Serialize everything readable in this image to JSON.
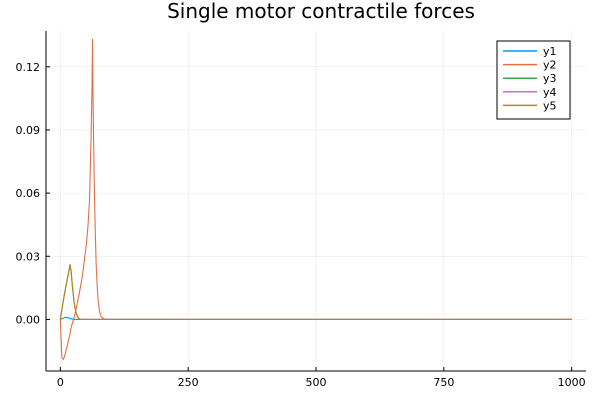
{
  "chart_data": {
    "type": "line",
    "title": "Single motor contractile forces",
    "xlabel": "",
    "ylabel": "",
    "xlim": [
      -28,
      1028
    ],
    "ylim": [
      -0.0245,
      0.137
    ],
    "x_ticks": [
      0,
      250,
      500,
      750,
      1000
    ],
    "x_tick_labels": [
      "0",
      "250",
      "500",
      "750",
      "1000"
    ],
    "y_ticks": [
      0.0,
      0.03,
      0.06,
      0.09,
      0.12
    ],
    "y_tick_labels": [
      "0.00",
      "0.03",
      "0.06",
      "0.09",
      "0.12"
    ],
    "grid": true,
    "legend": {
      "position": "top-right"
    },
    "series": [
      {
        "name": "y1",
        "color": "#009af9",
        "x": [
          0,
          5,
          10,
          15,
          20,
          25,
          30,
          50,
          100,
          1000
        ],
        "y": [
          0,
          0.0005,
          0.001,
          0.0008,
          0.0004,
          0.0001,
          0,
          0,
          0,
          0
        ]
      },
      {
        "name": "y2",
        "color": "#e26f46",
        "x": [
          0,
          3,
          6,
          9,
          12,
          15,
          18,
          21,
          24,
          27,
          30,
          33,
          36,
          39,
          42,
          45,
          48,
          51,
          54,
          57,
          60,
          62,
          63,
          64,
          66,
          68,
          70,
          72,
          74,
          76,
          78,
          80,
          85,
          90,
          100,
          1000
        ],
        "y": [
          0,
          -0.018,
          -0.019,
          -0.017,
          -0.014,
          -0.011,
          -0.008,
          -0.004,
          -0.0015,
          0.001,
          0.004,
          0.0075,
          0.011,
          0.015,
          0.019,
          0.024,
          0.03,
          0.036,
          0.044,
          0.056,
          0.085,
          0.11,
          0.133,
          0.105,
          0.07,
          0.045,
          0.027,
          0.016,
          0.009,
          0.005,
          0.0025,
          0.0012,
          0.0003,
          0,
          0,
          0
        ]
      },
      {
        "name": "y3",
        "color": "#3da44d",
        "x": [
          0,
          4,
          8,
          12,
          16,
          19,
          21,
          24,
          27,
          30,
          33,
          36,
          40,
          100,
          1000
        ],
        "y": [
          0,
          0.006,
          0.012,
          0.017,
          0.022,
          0.026,
          0.023,
          0.015,
          0.008,
          0.004,
          0.0015,
          0.0005,
          0,
          0,
          0
        ]
      },
      {
        "name": "y4",
        "color": "#c271d2",
        "x": [
          0,
          4,
          8,
          12,
          16,
          19,
          21,
          24,
          27,
          30,
          33,
          36,
          40,
          100,
          1000
        ],
        "y": [
          0,
          0.006,
          0.012,
          0.017,
          0.022,
          0.026,
          0.023,
          0.015,
          0.008,
          0.004,
          0.0015,
          0.0005,
          0,
          0,
          0
        ]
      },
      {
        "name": "y5",
        "color": "#ac8d18",
        "x": [
          0,
          4,
          8,
          12,
          16,
          19,
          21,
          24,
          27,
          30,
          33,
          36,
          40,
          100,
          1000
        ],
        "y": [
          0,
          0.006,
          0.012,
          0.017,
          0.022,
          0.026,
          0.023,
          0.015,
          0.008,
          0.004,
          0.0015,
          0.0005,
          0,
          0,
          0
        ]
      }
    ]
  }
}
